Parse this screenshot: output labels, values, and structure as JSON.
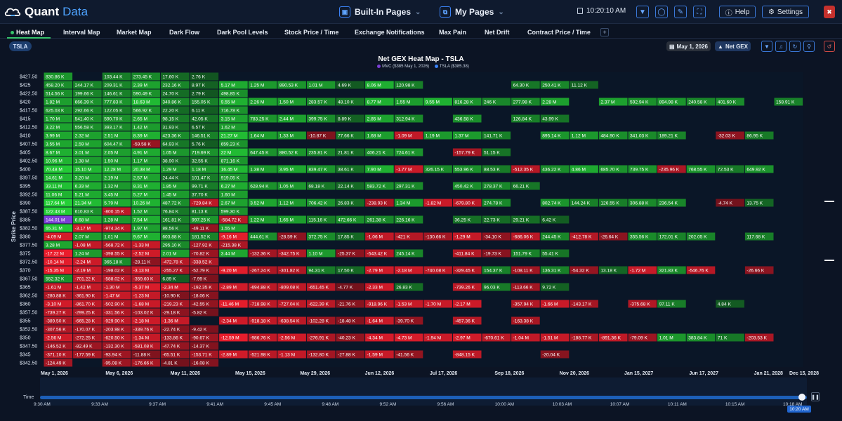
{
  "app": {
    "name_a": "Quant",
    "name_b": "Data"
  },
  "pages": {
    "builtin_label": "Built-In Pages",
    "mypages_label": "My Pages"
  },
  "clock": "10:20:10 AM",
  "buttons": {
    "help": "Help",
    "settings": "Settings"
  },
  "tabs": [
    "Heat Map",
    "Interval Map",
    "Market Map",
    "Dark Flow",
    "Dark Pool Levels",
    "Stock Price / Time",
    "Exchange Notifications",
    "Max Pain",
    "Net Drift",
    "Contract Price / Time"
  ],
  "ticker": "TSLA",
  "date_chip": "May 1, 2026",
  "gex_chip": "Net GEX",
  "chart_data": {
    "type": "heatmap",
    "title": "Net GEX Heat Map - TSLA",
    "legend": [
      {
        "label": "MVC ($385 May 1, 2026)",
        "color": "#7b3fd6"
      },
      {
        "label": "TSLA ($385.38)",
        "color": "#3b82f6"
      }
    ],
    "ylabel": "Strike Price",
    "x_ticks": [
      "May 1, 2026",
      "May 6, 2026",
      "May 11, 2026",
      "May 15, 2026",
      "May 29, 2026",
      "Jun 12, 2026",
      "Jul 17, 2026",
      "Sep 18, 2026",
      "Nov 20, 2026",
      "Jan 15, 2027",
      "Jun 17, 2027",
      "Jan 21, 2028",
      "Dec 15, 2028"
    ],
    "strikes": [
      "$427.50",
      "$425",
      "$422.50",
      "$420",
      "$417.50",
      "$415",
      "$412.50",
      "$410",
      "$407.50",
      "$405",
      "$402.50",
      "$400",
      "$397.50",
      "$395",
      "$392.50",
      "$390",
      "$387.50",
      "$385",
      "$382.50",
      "$380",
      "$377.50",
      "$375",
      "$372.50",
      "$370",
      "$367.50",
      "$365",
      "$362.50",
      "$360",
      "$357.50",
      "$355",
      "$352.50",
      "$350",
      "$347.50",
      "$345",
      "$342.50"
    ],
    "cells": [
      [
        "830.86 K",
        "",
        "103.44 K",
        "273.45 K",
        "17.60 K",
        "2.76 K",
        "",
        "",
        "",
        "",
        "",
        "",
        "",
        "",
        "",
        "",
        "",
        "",
        "",
        "",
        "",
        "",
        "",
        "",
        "",
        "",
        "",
        "",
        ""
      ],
      [
        "458.20 K",
        "244.17 K",
        "209.31 K",
        "2.39 M",
        "232.16 K",
        "8.97 K",
        "5.17 M",
        "1.25 M",
        "890.53 K",
        "1.01 M",
        "4.69 K",
        "8.06 M",
        "120.98 K",
        "",
        "",
        "",
        "64.30 K",
        "250.41 K",
        "11.12 K",
        "",
        "",
        "",
        "",
        "",
        "",
        "",
        "",
        "",
        ""
      ],
      [
        "514.56 K",
        "199.66 K",
        "146.61 K",
        "590.49 K",
        "24.70 K",
        "2.79 K",
        "498.85 K",
        "",
        "",
        "",
        "",
        "",
        "",
        "",
        "",
        "",
        "",
        "",
        "",
        "",
        "",
        "",
        "",
        "",
        "",
        "",
        "",
        "",
        ""
      ],
      [
        "1.82 M",
        "666.39 K",
        "777.83 K",
        "18.63 M",
        "340.86 K",
        "155.05 K",
        "9.55 M",
        "2.26 M",
        "1.50 M",
        "283.57 K",
        "48.10 K",
        "8.77 M",
        "1.55 M",
        "9.55 M",
        "816.28 K",
        "246 K",
        "277.98 K",
        "2.28 M",
        "",
        "2.37 M",
        "592.94 K",
        "894.98 K",
        "240.58 K",
        "401.60 K",
        "",
        "158.91 K",
        "",
        "",
        ""
      ],
      [
        "625.03 K",
        "292.66 K",
        "122.05 K",
        "566.92 K",
        "22.20 K",
        "6.11 K",
        "716.78 K",
        "",
        "",
        "",
        "",
        "",
        "",
        "",
        "",
        "",
        "",
        "",
        "",
        "",
        "",
        "",
        "",
        "",
        "",
        "",
        "",
        "",
        ""
      ],
      [
        "1.70 M",
        "541.40 K",
        "590.70 K",
        "2.65 M",
        "98.15 K",
        "42.05 K",
        "3.15 M",
        "783.25 K",
        "2.44 M",
        "399.75 K",
        "8.89 K",
        "2.85 M",
        "312.94 K",
        "",
        "436.58 K",
        "",
        "126.84 K",
        "43.99 K",
        "",
        "",
        "",
        "",
        "",
        "",
        "",
        "",
        "",
        "",
        ""
      ],
      [
        "3.22 M",
        "556.58 K",
        "393.17 K",
        "1.42 M",
        "31.93 K",
        "6.57 K",
        "1.62 M",
        "",
        "",
        "",
        "",
        "",
        "",
        "",
        "",
        "",
        "",
        "",
        "",
        "",
        "",
        "",
        "",
        "",
        "",
        "",
        "",
        "",
        ""
      ],
      [
        "3.99 M",
        "2.32 M",
        "2.51 M",
        "8.39 M",
        "423.36 K",
        "146.51 K",
        "21.27 M",
        "1.64 M",
        "1.33 M",
        "-10.87 K",
        "77.66 K",
        "1.68 M",
        "-1.09 M",
        "1.19 M",
        "1.37 M",
        "141.71 K",
        "",
        "895.14 K",
        "1.12 M",
        "484.90 K",
        "341.03 K",
        "189.21 K",
        "",
        "-32.03 K",
        "86.95 K",
        "",
        "",
        "",
        ""
      ],
      [
        "3.55 M",
        "2.59 M",
        "604.47 K",
        "-59.58 K",
        "64.93 K",
        "5.76 K",
        "659.23 K",
        "",
        "",
        "",
        "",
        "",
        "",
        "",
        "",
        "",
        "",
        "",
        "",
        "",
        "",
        "",
        "",
        "",
        "",
        "",
        "",
        "",
        ""
      ],
      [
        "8.67 M",
        "3.01 M",
        "2.05 M",
        "4.91 M",
        "1.05 M",
        "719.69 K",
        "22 M",
        "647.45 K",
        "880.52 K",
        "235.81 K",
        "21.81 K",
        "406.21 K",
        "724.61 K",
        "",
        "-157.79 K",
        "51.15 K",
        "",
        "",
        "",
        "",
        "",
        "",
        "",
        "",
        "",
        "",
        "",
        "",
        ""
      ],
      [
        "10.96 M",
        "1.38 M",
        "1.50 M",
        "1.17 M",
        "38.90 K",
        "32.55 K",
        "871.16 K",
        "",
        "",
        "",
        "",
        "",
        "",
        "",
        "",
        "",
        "",
        "",
        "",
        "",
        "",
        "",
        "",
        "",
        "",
        "",
        "",
        "",
        ""
      ],
      [
        "70.48 M",
        "15.10 M",
        "12.28 M",
        "20.38 M",
        "1.29 M",
        "1.18 M",
        "16.45 M",
        "1.38 M",
        "3.95 M",
        "839.47 K",
        "38.61 K",
        "7.90 M",
        "-1.77 M",
        "326.15 K",
        "553.96 K",
        "88.53 K",
        "-512.35 K",
        "436.22 K",
        "4.86 M",
        "685.70 K",
        "739.75 K",
        "-235.96 K",
        "768.55 K",
        "72.53 K",
        "649.92 K",
        "",
        "",
        "",
        ""
      ],
      [
        "14.61 M",
        "3.20 M",
        "2.19 M",
        "2.57 M",
        "24.44 K",
        "101.47 K",
        "919.05 K",
        "",
        "",
        "",
        "",
        "",
        "",
        "",
        "",
        "",
        "",
        "",
        "",
        "",
        "",
        "",
        "",
        "",
        "",
        "",
        "",
        "",
        ""
      ],
      [
        "33.11 M",
        "6.33 M",
        "1.32 M",
        "8.31 M",
        "1.85 M",
        "99.71 K",
        "6.27 M",
        "628.94 K",
        "1.05 M",
        "68.18 K",
        "22.14 K",
        "583.72 K",
        "297.31 K",
        "",
        "450.42 K",
        "278.37 K",
        "66.21 K",
        "",
        "",
        "",
        "",
        "",
        "",
        "",
        "",
        "",
        "",
        "",
        ""
      ],
      [
        "11.06 M",
        "5.21 M",
        "3.45 M",
        "5.27 M",
        "1.45 M",
        "37.70 K",
        "1.60 M",
        "",
        "",
        "",
        "",
        "",
        "",
        "",
        "",
        "",
        "",
        "",
        "",
        "",
        "",
        "",
        "",
        "",
        "",
        "",
        "",
        "",
        ""
      ],
      [
        "117.64 M",
        "21.34 M",
        "5.79 M",
        "10.26 M",
        "487.72 K",
        "-729.84 K",
        "2.67 M",
        "3.52 M",
        "1.12 M",
        "706.42 K",
        "26.83 K",
        "-238.93 K",
        "1.34 M",
        "-1.82 M",
        "-679.80 K",
        "274.78 K",
        "",
        "802.74 K",
        "144.24 K",
        "126.55 K",
        "306.88 K",
        "236.54 K",
        "",
        "-4.74 K",
        "13.75 K",
        "",
        "",
        "",
        ""
      ],
      [
        "122.43 M",
        "610.83 K",
        "-800.15 K",
        "1.52 M",
        "76.84 K",
        "81.13 K",
        "599.30 K",
        "",
        "",
        "",
        "",
        "",
        "",
        "",
        "",
        "",
        "",
        "",
        "",
        "",
        "",
        "",
        "",
        "",
        "",
        "",
        "",
        "",
        ""
      ],
      [
        "144.01 M",
        "6.68 M",
        "1.28 M",
        "7.54 M",
        "161.81 K",
        "997.25 K",
        "-584.72 K",
        "1.22 M",
        "1.65 M",
        "115.16 K",
        "472.66 K",
        "261.38 K",
        "226.16 K",
        "",
        "36.25 K",
        "22.73 K",
        "29.21 K",
        "6.42 K",
        "",
        "",
        "",
        "",
        "",
        "",
        "",
        "",
        "",
        "",
        ""
      ],
      [
        "65.31 M",
        "-3.17 M",
        "-974.34 K",
        "1.97 M",
        "88.56 K",
        "-49.11 K",
        "1.55 M",
        "",
        "",
        "",
        "",
        "",
        "",
        "",
        "",
        "",
        "",
        "",
        "",
        "",
        "",
        "",
        "",
        "",
        "",
        "",
        "",
        "",
        ""
      ],
      [
        "-4.09 M",
        "2.07 M",
        "1.01 M",
        "9.67 M",
        "603.88 K",
        "181.52 K",
        "-9.16 M",
        "444.61 K",
        "-28.59 K",
        "372.75 K",
        "17.85 K",
        "-1.06 M",
        "-421 K",
        "-130.66 K",
        "-1.29 M",
        "-34.10 K",
        "-686.06 K",
        "244.45 K",
        "-412.78 K",
        "-26.64 K",
        "355.56 K",
        "172.01 K",
        "202.05 K",
        "",
        "117.68 K",
        "",
        "",
        "",
        ""
      ],
      [
        "3.28 M",
        "-1.08 M",
        "-568.72 K",
        "-1.33 M",
        "295.10 K",
        "-127.92 K",
        "-215.38 K",
        "",
        "",
        "",
        "",
        "",
        "",
        "",
        "",
        "",
        "",
        "",
        "",
        "",
        "",
        "",
        "",
        "",
        "",
        "",
        "",
        "",
        ""
      ],
      [
        "-17.22 M",
        "1.24 M",
        "-398.55 K",
        "-2.52 M",
        "2.01 M",
        "-70.82 K",
        "3.44 M",
        "-132.36 K",
        "-342.75 K",
        "1.10 M",
        "-25.37 K",
        "-543.42 K",
        "245.14 K",
        "",
        "-411.84 K",
        "-19.73 K",
        "151.79 K",
        "55.41 K",
        "",
        "",
        "",
        "",
        "",
        "",
        "",
        "",
        "",
        "",
        ""
      ],
      [
        "-10.14 M",
        "-2.24 M",
        "365.18 K",
        "-28.11 K",
        "-472.78 K",
        "-338.52 K",
        "",
        "",
        "",
        "",
        "",
        "",
        "",
        "",
        "",
        "",
        "",
        "",
        "",
        "",
        "",
        "",
        "",
        "",
        "",
        "",
        "",
        "",
        ""
      ],
      [
        "-15.35 M",
        "-2.19 M",
        "-198.02 K",
        "-3.13 M",
        "-255.27 K",
        "-52.79 K",
        "-9.20 M",
        "-267.24 K",
        "-301.82 K",
        "94.31 K",
        "17.50 K",
        "-2.79 M",
        "-2.18 M",
        "-740.08 K",
        "-329.45 K",
        "154.37 K",
        "-108.11 K",
        "136.31 K",
        "-54.32 K",
        "13.18 K",
        "-1.72 M",
        "321.83 K",
        "-546.76 K",
        "",
        "-26.66 K",
        "",
        "",
        "",
        ""
      ],
      [
        "552.32 K",
        "-701.22 K",
        "-588.02 K",
        "-359.60 K",
        "6.89 K",
        "-7.99 K",
        "",
        "",
        "",
        "",
        "",
        "",
        "",
        "",
        "",
        "",
        "",
        "",
        "",
        "",
        "",
        "",
        "",
        "",
        "",
        "",
        "",
        "",
        ""
      ],
      [
        "-1.61 M",
        "-1.42 M",
        "-1.30 M",
        "-5.37 M",
        "-2.34 M",
        "-192.35 K",
        "-2.89 M",
        "-694.88 K",
        "-809.08 K",
        "-651.45 K",
        "-4.77 K",
        "-2.33 M",
        "26.83 K",
        "",
        "-739.26 K",
        "96.03 K",
        "-113.66 K",
        "9.72 K",
        "",
        "",
        "",
        "",
        "",
        "",
        "",
        "",
        "",
        "",
        ""
      ],
      [
        "-280.88 K",
        "-361.90 K",
        "-1.47 M",
        "-1.23 M",
        "-10.90 K",
        "-18.06 K",
        "",
        "",
        "",
        "",
        "",
        "",
        "",
        "",
        "",
        "",
        "",
        "",
        "",
        "",
        "",
        "",
        "",
        "",
        "",
        "",
        "",
        "",
        ""
      ],
      [
        "-3.10 M",
        "-861.70 K",
        "-502.90 K",
        "-1.68 M",
        "-219.23 K",
        "-42.55 K",
        "-11.46 M",
        "-718.98 K",
        "-727.04 K",
        "-622.39 K",
        "-21.76 K",
        "-918.96 K",
        "-1.53 M",
        "-1.70 M",
        "-2.17 M",
        "",
        "-357.94 K",
        "-1.66 M",
        "-143.17 K",
        "",
        "-375.68 K",
        "97.11 K",
        "",
        "4.84 K",
        "",
        "",
        "",
        "",
        ""
      ],
      [
        "-739.27 K",
        "-299.25 K",
        "-331.56 K",
        "-103.02 K",
        "-29.18 K",
        "-5.82 K",
        "",
        "",
        "",
        "",
        "",
        "",
        "",
        "",
        "",
        "",
        "",
        "",
        "",
        "",
        "",
        "",
        "",
        "",
        "",
        "",
        "",
        "",
        ""
      ],
      [
        "-389.50 K",
        "-665.28 K",
        "-929.90 K",
        "-2.18 M",
        "-1.36 M",
        "",
        "-2.34 M",
        "-918.18 K",
        "-638.54 K",
        "-102.28 K",
        "-18.48 K",
        "-1.64 M",
        "-39.70 K",
        "",
        "-457.36 K",
        "",
        "-163.38 K",
        "",
        "",
        "",
        "",
        "",
        "",
        "",
        "",
        "",
        "",
        "",
        ""
      ],
      [
        "-307.56 K",
        "-170.07 K",
        "-203.98 K",
        "-339.76 K",
        "-22.74 K",
        "-9.42 K",
        "",
        "",
        "",
        "",
        "",
        "",
        "",
        "",
        "",
        "",
        "",
        "",
        "",
        "",
        "",
        "",
        "",
        "",
        "",
        "",
        "",
        "",
        ""
      ],
      [
        "-2.56 M",
        "-272.25 K",
        "-620.50 K",
        "-1.34 M",
        "-133.86 K",
        "-90.67 K",
        "-12.59 M",
        "-986.76 K",
        "-2.56 M",
        "-276.91 K",
        "-40.23 K",
        "-4.34 M",
        "-4.73 M",
        "-1.94 M",
        "-2.97 M",
        "-670.61 K",
        "-1.04 M",
        "-1.51 M",
        "-188.77 K",
        "-891.36 K",
        "-79.09 K",
        "1.01 M",
        "383.84 K",
        "71 K",
        "-203.53 K",
        "",
        "",
        "",
        ""
      ],
      [
        "-146.52 K",
        "-82.49 K",
        "-132.30 K",
        "-581.08 K",
        "-47.74 K",
        "-14.37 K",
        "",
        "",
        "",
        "",
        "",
        "",
        "",
        "",
        "",
        "",
        "",
        "",
        "",
        "",
        "",
        "",
        "",
        "",
        "",
        "",
        "",
        "",
        ""
      ],
      [
        "-371.10 K",
        "-177.59 K",
        "-93.94 K",
        "-11.88 K",
        "-65.51 K",
        "-153.71 K",
        "-2.89 M",
        "-521.98 K",
        "-1.13 M",
        "-132.80 K",
        "-27.88 K",
        "-1.59 M",
        "-41.56 K",
        "",
        "-848.15 K",
        "",
        "",
        "-20.04 K",
        "",
        "",
        "",
        "",
        "",
        "",
        "",
        "",
        "",
        "",
        ""
      ],
      [
        "-124.49 K",
        "",
        "-95.08 K",
        "-176.66 K",
        "-4.81 K",
        "-16.08 K",
        "",
        "",
        "",
        "",
        "",
        "",
        "",
        "",
        "",
        "",
        "",
        "",
        "",
        "",
        "",
        "",
        "",
        "",
        "",
        "",
        "",
        "",
        ""
      ]
    ],
    "highlight_strike": "$385",
    "highlight_color": "#7b3fd6",
    "positive_color": "#1e8f3a",
    "negative_color": "#a3192a"
  },
  "time_slider": {
    "label": "Time",
    "ticks": [
      "9:30 AM",
      "9:33 AM",
      "9:37 AM",
      "9:41 AM",
      "9:45 AM",
      "9:48 AM",
      "9:52 AM",
      "9:56 AM",
      "10:00 AM",
      "10:03 AM",
      "10:07 AM",
      "10:11 AM",
      "10:15 AM",
      "10:18 AM"
    ],
    "current": "10:20 AM",
    "position": 1.0
  }
}
